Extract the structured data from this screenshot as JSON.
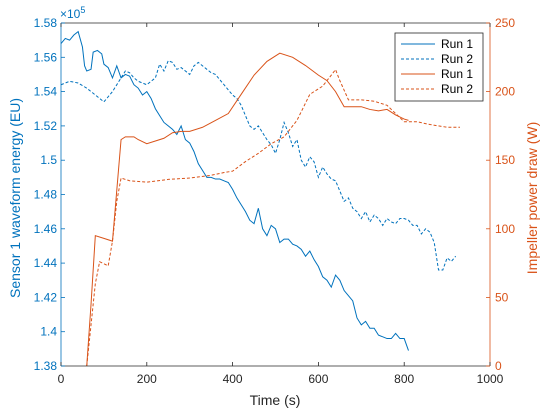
{
  "chart_data": {
    "type": "line",
    "title": "",
    "xlabel": "Time (s)",
    "ylabel_left": "Sensor 1 waveform energy (EU)",
    "ylabel_right": "Impeller power draw (W)",
    "left_axis_exponent": "×10",
    "left_axis_exponent_power": "5",
    "xlim": [
      0,
      1000
    ],
    "ylim_left": [
      1.38,
      1.58
    ],
    "ylim_right": [
      0,
      250
    ],
    "x_ticks": [
      0,
      200,
      400,
      600,
      800,
      1000
    ],
    "x_tick_labels": [
      "0",
      "200",
      "400",
      "600",
      "800",
      "1000"
    ],
    "left_ticks": [
      1.38,
      1.4,
      1.42,
      1.44,
      1.46,
      1.48,
      1.5,
      1.52,
      1.54,
      1.56,
      1.58
    ],
    "left_tick_labels": [
      "1.38",
      "1.4",
      "1.42",
      "1.44",
      "1.46",
      "1.48",
      "1.5",
      "1.52",
      "1.54",
      "1.56",
      "1.58"
    ],
    "right_ticks": [
      0,
      50,
      100,
      150,
      200,
      250
    ],
    "right_tick_labels": [
      "0",
      "50",
      "100",
      "150",
      "200",
      "250"
    ],
    "grid": false,
    "legend_position": "top-right",
    "colors": {
      "blue": "#0072BD",
      "orange": "#D95319",
      "axis": "#262626"
    },
    "series": [
      {
        "name": "Run 1",
        "axis": "left",
        "color": "#0072BD",
        "dash": "solid",
        "points": [
          [
            0,
            1.568
          ],
          [
            10,
            1.571
          ],
          [
            20,
            1.57
          ],
          [
            30,
            1.573
          ],
          [
            40,
            1.575
          ],
          [
            50,
            1.566
          ],
          [
            55,
            1.555
          ],
          [
            60,
            1.552
          ],
          [
            70,
            1.553
          ],
          [
            75,
            1.563
          ],
          [
            85,
            1.564
          ],
          [
            95,
            1.562
          ],
          [
            100,
            1.556
          ],
          [
            110,
            1.554
          ],
          [
            120,
            1.548
          ],
          [
            130,
            1.555
          ],
          [
            140,
            1.548
          ],
          [
            150,
            1.55
          ],
          [
            160,
            1.549
          ],
          [
            170,
            1.544
          ],
          [
            180,
            1.542
          ],
          [
            190,
            1.538
          ],
          [
            200,
            1.54
          ],
          [
            210,
            1.536
          ],
          [
            220,
            1.53
          ],
          [
            230,
            1.526
          ],
          [
            240,
            1.522
          ],
          [
            250,
            1.52
          ],
          [
            260,
            1.518
          ],
          [
            270,
            1.515
          ],
          [
            280,
            1.52
          ],
          [
            290,
            1.512
          ],
          [
            300,
            1.51
          ],
          [
            310,
            1.505
          ],
          [
            320,
            1.498
          ],
          [
            330,
            1.494
          ],
          [
            340,
            1.49
          ],
          [
            350,
            1.49
          ],
          [
            360,
            1.489
          ],
          [
            370,
            1.489
          ],
          [
            380,
            1.488
          ],
          [
            390,
            1.487
          ],
          [
            400,
            1.483
          ],
          [
            410,
            1.478
          ],
          [
            420,
            1.474
          ],
          [
            430,
            1.47
          ],
          [
            440,
            1.465
          ],
          [
            450,
            1.463
          ],
          [
            460,
            1.472
          ],
          [
            470,
            1.46
          ],
          [
            480,
            1.456
          ],
          [
            490,
            1.462
          ],
          [
            500,
            1.46
          ],
          [
            510,
            1.452
          ],
          [
            520,
            1.454
          ],
          [
            530,
            1.454
          ],
          [
            540,
            1.451
          ],
          [
            550,
            1.45
          ],
          [
            560,
            1.448
          ],
          [
            570,
            1.444
          ],
          [
            580,
            1.447
          ],
          [
            590,
            1.442
          ],
          [
            600,
            1.438
          ],
          [
            610,
            1.432
          ],
          [
            620,
            1.43
          ],
          [
            630,
            1.426
          ],
          [
            640,
            1.433
          ],
          [
            650,
            1.43
          ],
          [
            660,
            1.424
          ],
          [
            670,
            1.421
          ],
          [
            680,
            1.418
          ],
          [
            690,
            1.408
          ],
          [
            700,
            1.404
          ],
          [
            710,
            1.406
          ],
          [
            720,
            1.402
          ],
          [
            730,
            1.402
          ],
          [
            740,
            1.398
          ],
          [
            750,
            1.397
          ],
          [
            760,
            1.396
          ],
          [
            770,
            1.396
          ],
          [
            780,
            1.399
          ],
          [
            790,
            1.396
          ],
          [
            800,
            1.396
          ],
          [
            810,
            1.389
          ]
        ]
      },
      {
        "name": "Run 2",
        "axis": "left",
        "color": "#0072BD",
        "dash": "dashed",
        "points": [
          [
            0,
            1.544
          ],
          [
            20,
            1.546
          ],
          [
            40,
            1.545
          ],
          [
            60,
            1.542
          ],
          [
            80,
            1.538
          ],
          [
            100,
            1.534
          ],
          [
            120,
            1.54
          ],
          [
            140,
            1.548
          ],
          [
            150,
            1.552
          ],
          [
            160,
            1.551
          ],
          [
            170,
            1.548
          ],
          [
            180,
            1.546
          ],
          [
            200,
            1.544
          ],
          [
            220,
            1.548
          ],
          [
            230,
            1.556
          ],
          [
            240,
            1.552
          ],
          [
            250,
            1.558
          ],
          [
            260,
            1.557
          ],
          [
            270,
            1.553
          ],
          [
            280,
            1.554
          ],
          [
            290,
            1.552
          ],
          [
            300,
            1.55
          ],
          [
            310,
            1.555
          ],
          [
            320,
            1.557
          ],
          [
            330,
            1.555
          ],
          [
            340,
            1.553
          ],
          [
            350,
            1.551
          ],
          [
            360,
            1.55
          ],
          [
            370,
            1.547
          ],
          [
            380,
            1.544
          ],
          [
            390,
            1.541
          ],
          [
            400,
            1.538
          ],
          [
            410,
            1.536
          ],
          [
            420,
            1.532
          ],
          [
            430,
            1.526
          ],
          [
            440,
            1.52
          ],
          [
            450,
            1.518
          ],
          [
            460,
            1.52
          ],
          [
            470,
            1.516
          ],
          [
            480,
            1.512
          ],
          [
            490,
            1.509
          ],
          [
            500,
            1.504
          ],
          [
            510,
            1.512
          ],
          [
            520,
            1.522
          ],
          [
            530,
            1.516
          ],
          [
            540,
            1.508
          ],
          [
            550,
            1.512
          ],
          [
            560,
            1.5
          ],
          [
            570,
            1.496
          ],
          [
            580,
            1.502
          ],
          [
            590,
            1.499
          ],
          [
            600,
            1.49
          ],
          [
            610,
            1.496
          ],
          [
            620,
            1.492
          ],
          [
            630,
            1.489
          ],
          [
            640,
            1.488
          ],
          [
            650,
            1.482
          ],
          [
            660,
            1.476
          ],
          [
            670,
            1.478
          ],
          [
            680,
            1.472
          ],
          [
            690,
            1.47
          ],
          [
            700,
            1.466
          ],
          [
            710,
            1.47
          ],
          [
            720,
            1.464
          ],
          [
            730,
            1.468
          ],
          [
            740,
            1.466
          ],
          [
            750,
            1.462
          ],
          [
            760,
            1.466
          ],
          [
            770,
            1.464
          ],
          [
            780,
            1.463
          ],
          [
            790,
            1.466
          ],
          [
            800,
            1.466
          ],
          [
            810,
            1.465
          ],
          [
            820,
            1.462
          ],
          [
            830,
            1.462
          ],
          [
            840,
            1.457
          ],
          [
            850,
            1.46
          ],
          [
            860,
            1.458
          ],
          [
            870,
            1.452
          ],
          [
            880,
            1.436
          ],
          [
            890,
            1.436
          ],
          [
            900,
            1.443
          ],
          [
            910,
            1.441
          ],
          [
            920,
            1.444
          ]
        ]
      },
      {
        "name": "Run 1",
        "axis": "right",
        "color": "#D95319",
        "dash": "solid",
        "points": [
          [
            60,
            0
          ],
          [
            70,
            45
          ],
          [
            80,
            95
          ],
          [
            100,
            93
          ],
          [
            120,
            91
          ],
          [
            140,
            165
          ],
          [
            150,
            167
          ],
          [
            170,
            167
          ],
          [
            180,
            165
          ],
          [
            200,
            162
          ],
          [
            220,
            164
          ],
          [
            240,
            166
          ],
          [
            260,
            170
          ],
          [
            280,
            171
          ],
          [
            300,
            171
          ],
          [
            330,
            174
          ],
          [
            360,
            179
          ],
          [
            390,
            184
          ],
          [
            420,
            198
          ],
          [
            450,
            212
          ],
          [
            480,
            222
          ],
          [
            510,
            228
          ],
          [
            540,
            225
          ],
          [
            570,
            219
          ],
          [
            600,
            212
          ],
          [
            620,
            208
          ],
          [
            640,
            200
          ],
          [
            660,
            189
          ],
          [
            680,
            189
          ],
          [
            700,
            189
          ],
          [
            720,
            187
          ],
          [
            740,
            186
          ],
          [
            760,
            187
          ],
          [
            780,
            183
          ],
          [
            800,
            180
          ],
          [
            810,
            179
          ]
        ]
      },
      {
        "name": "Run 2",
        "axis": "right",
        "color": "#D95319",
        "dash": "dashed",
        "points": [
          [
            60,
            0
          ],
          [
            80,
            60
          ],
          [
            90,
            76
          ],
          [
            110,
            73
          ],
          [
            120,
            91
          ],
          [
            130,
            120
          ],
          [
            140,
            137
          ],
          [
            160,
            135
          ],
          [
            200,
            134
          ],
          [
            250,
            136
          ],
          [
            300,
            137
          ],
          [
            350,
            139
          ],
          [
            380,
            141
          ],
          [
            400,
            142
          ],
          [
            430,
            149
          ],
          [
            460,
            155
          ],
          [
            490,
            162
          ],
          [
            520,
            167
          ],
          [
            550,
            179
          ],
          [
            580,
            198
          ],
          [
            610,
            204
          ],
          [
            640,
            216
          ],
          [
            650,
            208
          ],
          [
            670,
            194
          ],
          [
            700,
            194
          ],
          [
            730,
            193
          ],
          [
            760,
            190
          ],
          [
            800,
            178
          ],
          [
            830,
            178
          ],
          [
            860,
            176
          ],
          [
            900,
            174
          ],
          [
            930,
            174
          ]
        ]
      }
    ]
  }
}
